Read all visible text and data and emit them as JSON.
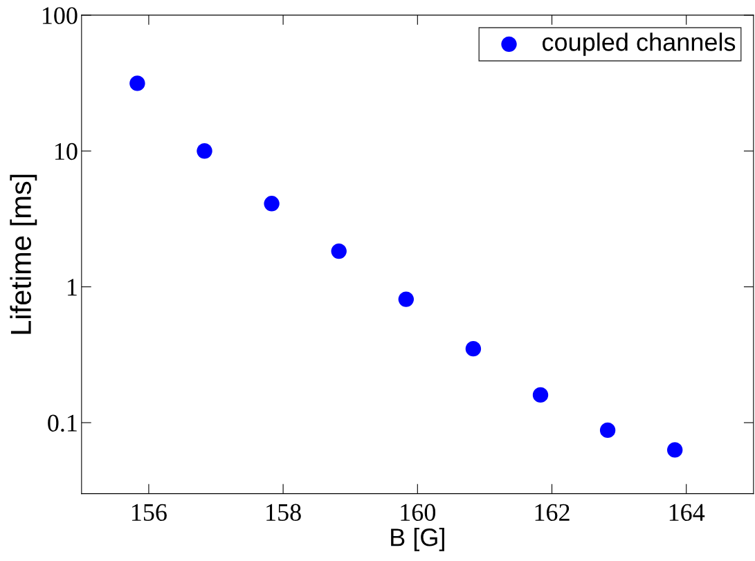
{
  "chart_data": {
    "type": "scatter",
    "xlabel": "B [G]",
    "ylabel": "Lifetime [ms]",
    "log": "y",
    "x": [
      155.83,
      156.83,
      157.83,
      158.83,
      159.83,
      160.83,
      161.83,
      162.83,
      163.83
    ],
    "series": [
      {
        "name": "coupled channels",
        "color": "#0000ff",
        "values": [
          31.5,
          10,
          4.1,
          1.83,
          0.81,
          0.35,
          0.16,
          0.088,
          0.063
        ]
      }
    ],
    "xlim": [
      155,
      165
    ],
    "xticks": [
      156,
      158,
      160,
      162,
      164
    ],
    "ylim": [
      0.03,
      100
    ],
    "yticks": [
      {
        "value": 0.1,
        "label": "0.1"
      },
      {
        "value": 1,
        "label": "1"
      },
      {
        "value": 10,
        "label": "10"
      },
      {
        "value": 100,
        "label": "100"
      }
    ],
    "marker": "circle",
    "grid": false,
    "legend": "top right"
  }
}
